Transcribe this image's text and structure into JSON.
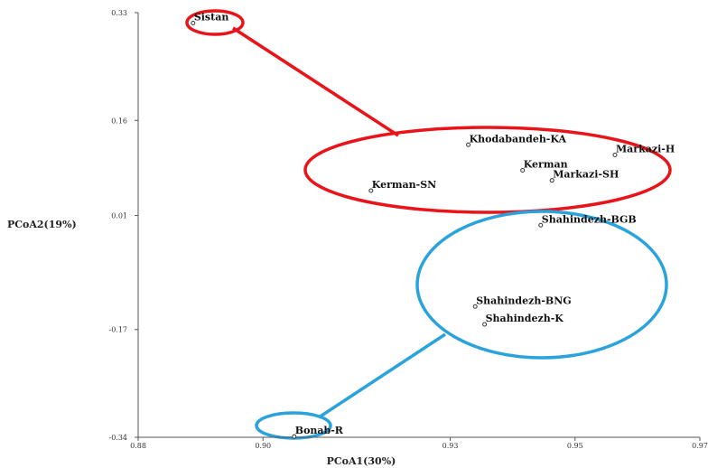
{
  "chart_data": {
    "type": "scatter",
    "title": "",
    "xlabel": "PCoA1(30%)",
    "ylabel": "PCoA2(19%)",
    "xlim": [
      0.88,
      0.97
    ],
    "ylim": [
      -0.34,
      0.33
    ],
    "xticks": [
      0.88,
      0.9,
      0.93,
      0.95,
      0.97
    ],
    "xtick_labels": [
      "0.88",
      "0.90",
      "0.93",
      "0.95",
      "0.97"
    ],
    "yticks": [
      0.33,
      0.16,
      0.01,
      -0.17,
      -0.34
    ],
    "ytick_labels": [
      "0.33",
      "0.16",
      "0.01",
      "-0.17",
      "-0.34"
    ],
    "grid": false,
    "points": [
      {
        "label": "Sistan",
        "x": 0.8888,
        "y": 0.3136
      },
      {
        "label": "Khodabandeh-KA",
        "x": 0.9329,
        "y": 0.1215
      },
      {
        "label": "Markazi-H",
        "x": 0.9564,
        "y": 0.1055
      },
      {
        "label": "Kerman",
        "x": 0.9416,
        "y": 0.0813
      },
      {
        "label": "Markazi-SH",
        "x": 0.9463,
        "y": 0.0653
      },
      {
        "label": "Kerman-SN",
        "x": 0.9173,
        "y": 0.0492
      },
      {
        "label": "Shahindezh-BGB",
        "x": 0.9445,
        "y": -0.0054
      },
      {
        "label": "Shahindezh-BNG",
        "x": 0.934,
        "y": -0.1337
      },
      {
        "label": "Shahindezh-K",
        "x": 0.9355,
        "y": -0.1618
      },
      {
        "label": "Bonab-R",
        "x": 0.905,
        "y": -0.3387
      }
    ],
    "groups": [
      {
        "name": "red",
        "color": "#e8141a",
        "members": [
          "Sistan",
          "Khodabandeh-KA",
          "Markazi-H",
          "Kerman",
          "Markazi-SH",
          "Kerman-SN"
        ]
      },
      {
        "name": "blue",
        "color": "#2aa3dc",
        "members": [
          "Shahindezh-BGB",
          "Shahindezh-BNG",
          "Shahindezh-K",
          "Bonab-R"
        ]
      }
    ]
  }
}
